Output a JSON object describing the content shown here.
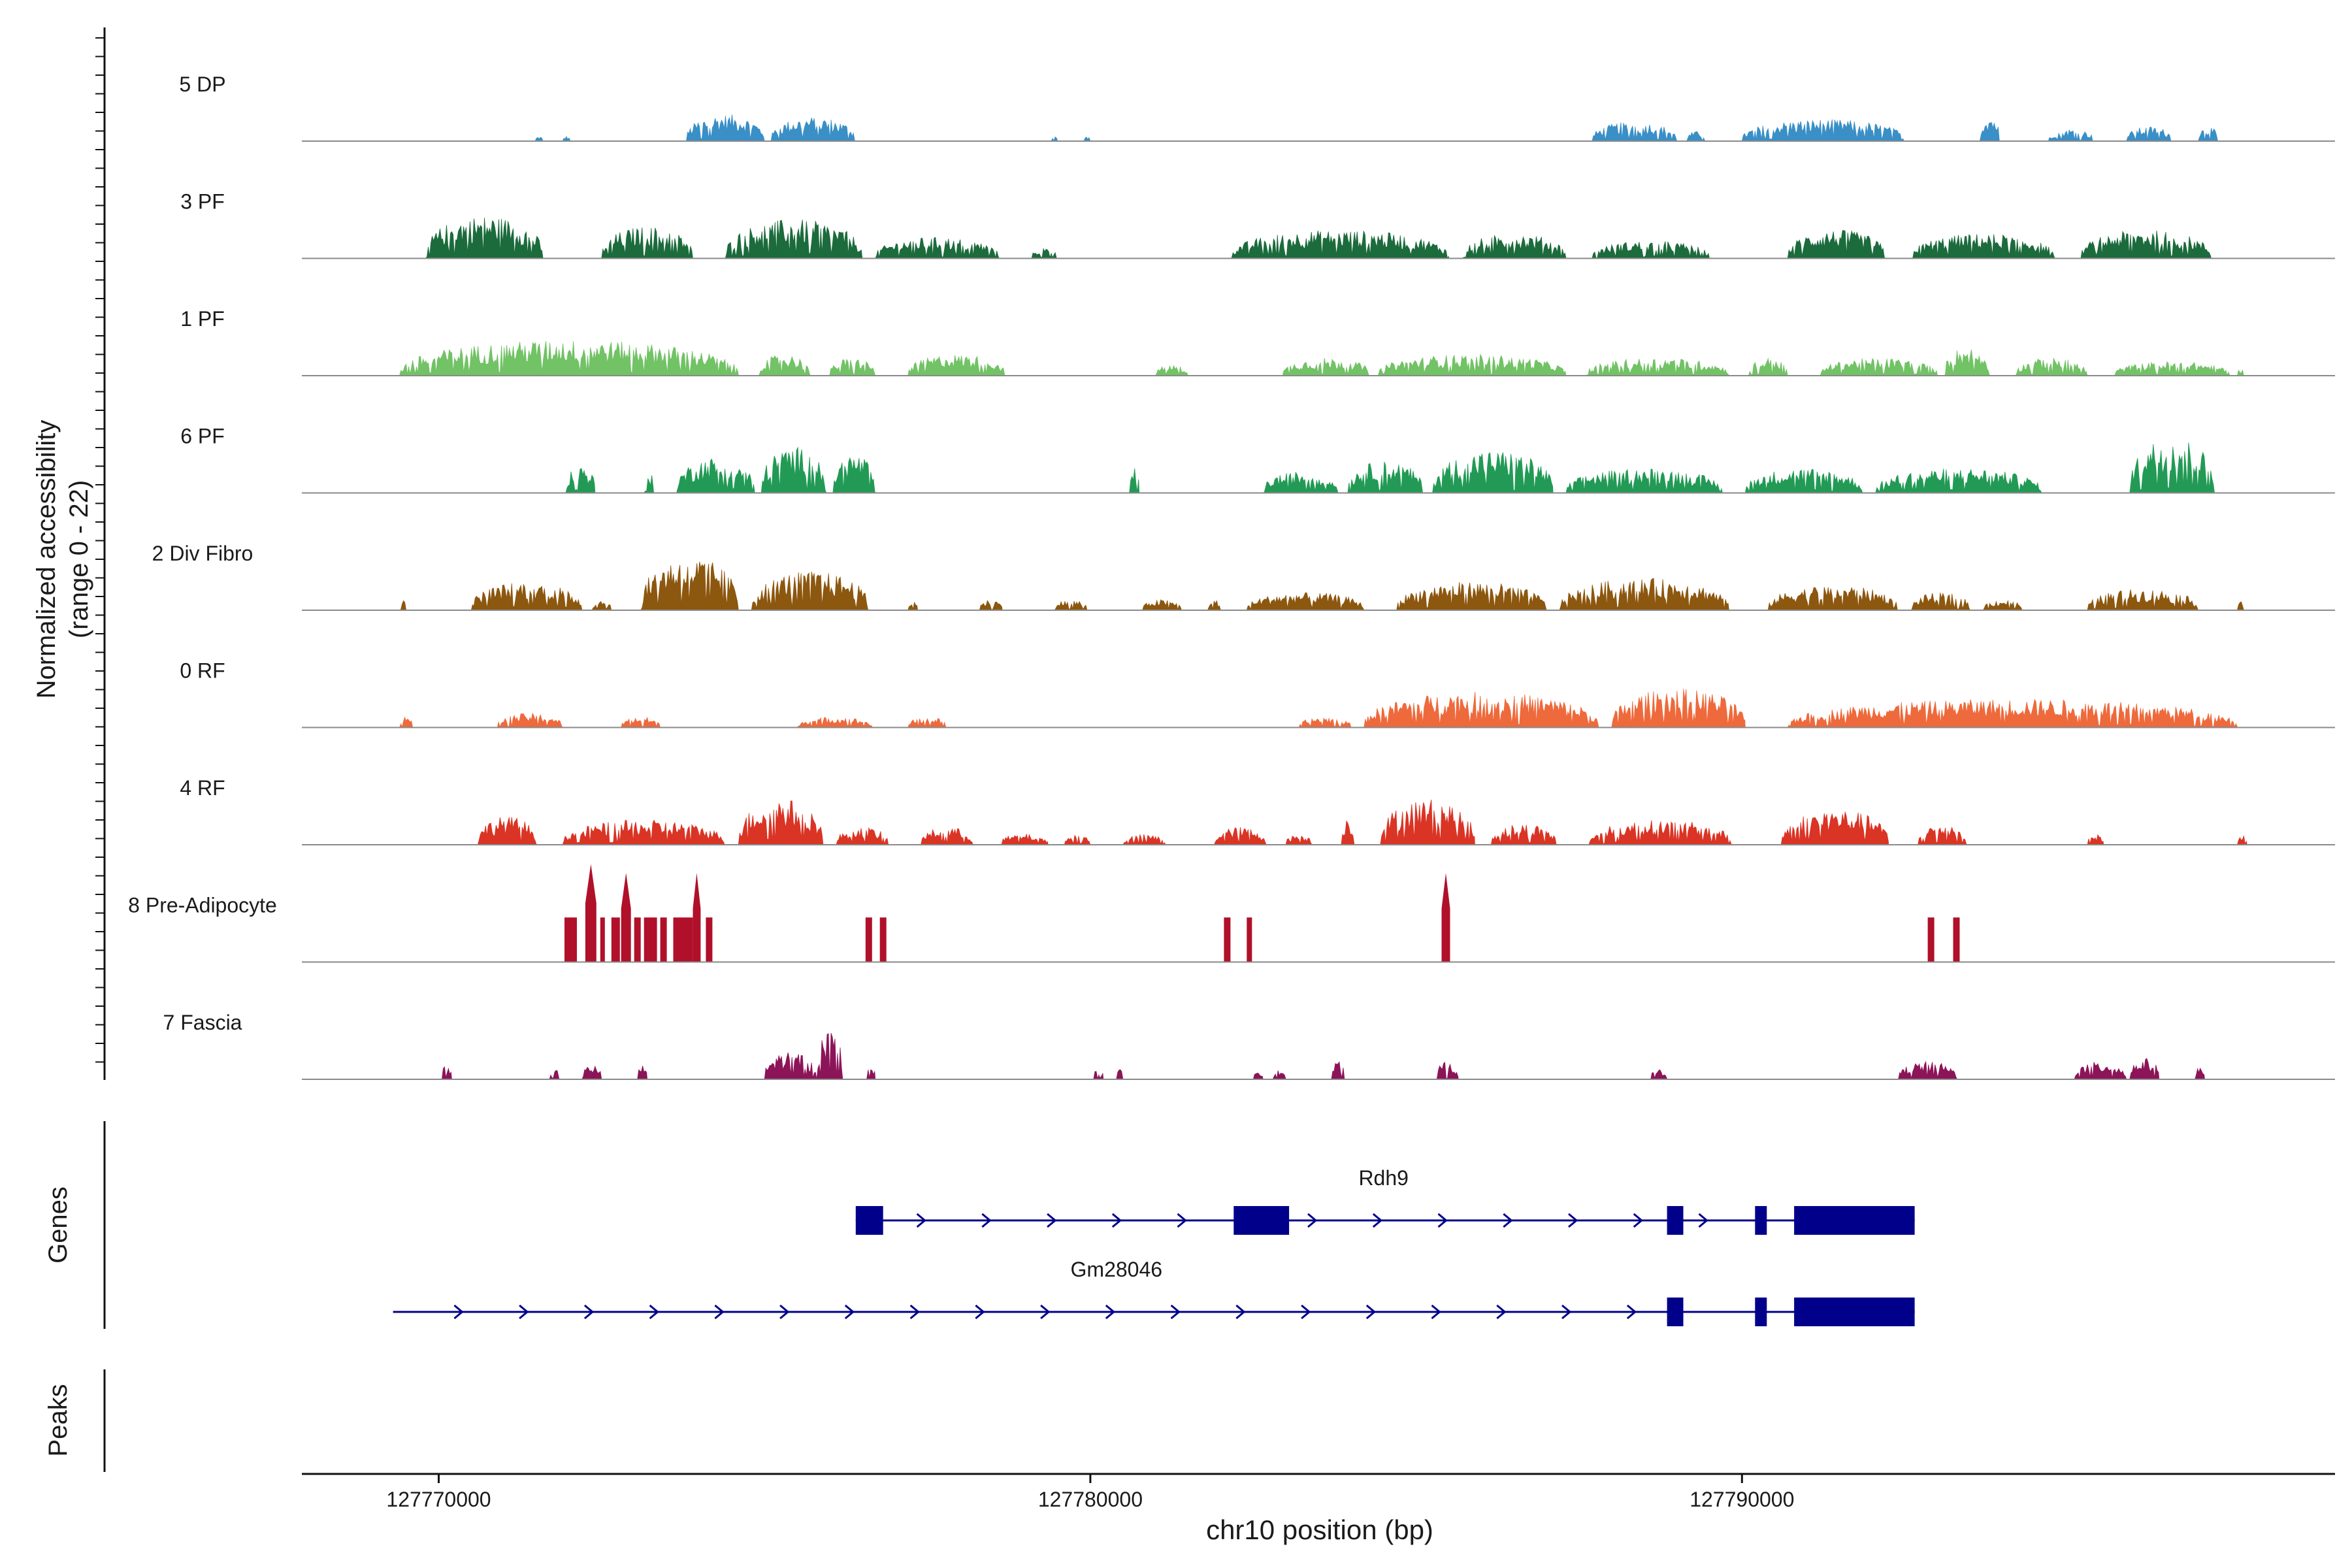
{
  "chart_data": {
    "type": "genome-coverage",
    "xlabel": "chr10 position (bp)",
    "ylabel_line1": "Normalized accessibility",
    "ylabel_line2": "(range 0 - 22)",
    "y_range": [
      0,
      22
    ],
    "xlim": [
      127767900,
      127799100
    ],
    "x_ticks": [
      127770000,
      127780000,
      127790000
    ],
    "tick_labels": [
      "127770000",
      "127780000",
      "127790000"
    ],
    "panel_labels": {
      "genes": "Genes",
      "peaks": "Peaks"
    },
    "tracks": [
      {
        "name": "5 DP",
        "color": "#3a8fc7",
        "mode": "area",
        "scale": 0.55,
        "regions": [
          [
            127771480,
            127771600,
            2
          ],
          [
            127771900,
            127772020,
            2
          ],
          [
            127773800,
            127775000,
            11
          ],
          [
            127775100,
            127776400,
            10
          ],
          [
            127779400,
            127779500,
            2
          ],
          [
            127779900,
            127780000,
            2
          ],
          [
            127787700,
            127789000,
            8
          ],
          [
            127789150,
            127789450,
            4
          ],
          [
            127790000,
            127792500,
            9
          ],
          [
            127793650,
            127793950,
            11
          ],
          [
            127794700,
            127795400,
            5
          ],
          [
            127795900,
            127796600,
            6
          ],
          [
            127797000,
            127797300,
            6
          ]
        ]
      },
      {
        "name": "3 PF",
        "color": "#1c6b3c",
        "mode": "area",
        "scale": 0.8,
        "regions": [
          [
            127769800,
            127771600,
            12
          ],
          [
            127772500,
            127773900,
            9
          ],
          [
            127774400,
            127776500,
            11
          ],
          [
            127776700,
            127778600,
            6
          ],
          [
            127779100,
            127779500,
            3
          ],
          [
            127782150,
            127785500,
            8
          ],
          [
            127785700,
            127787300,
            7
          ],
          [
            127787700,
            127789500,
            5
          ],
          [
            127790700,
            127792200,
            8
          ],
          [
            127792600,
            127794800,
            7
          ],
          [
            127795200,
            127797200,
            8
          ]
        ]
      },
      {
        "name": "1 PF",
        "color": "#72c266",
        "mode": "area",
        "scale": 0.8,
        "regions": [
          [
            127769400,
            127774600,
            10
          ],
          [
            127774900,
            127775700,
            6
          ],
          [
            127776000,
            127776700,
            5
          ],
          [
            127777200,
            127778700,
            6
          ],
          [
            127781000,
            127781500,
            3
          ],
          [
            127782950,
            127784300,
            5
          ],
          [
            127784400,
            127787300,
            6
          ],
          [
            127787600,
            127789800,
            5
          ],
          [
            127790100,
            127790700,
            5
          ],
          [
            127791200,
            127793000,
            5
          ],
          [
            127793100,
            127793800,
            8
          ],
          [
            127794200,
            127795300,
            5
          ],
          [
            127795700,
            127797500,
            4
          ],
          [
            127797600,
            127797700,
            2
          ]
        ]
      },
      {
        "name": "6 PF",
        "color": "#229a55",
        "mode": "area",
        "scale": 0.8,
        "regions": [
          [
            127771950,
            127772400,
            8
          ],
          [
            127773150,
            127773300,
            6
          ],
          [
            127773650,
            127774850,
            10
          ],
          [
            127774950,
            127775950,
            13
          ],
          [
            127776050,
            127776700,
            11
          ],
          [
            127780600,
            127780750,
            7
          ],
          [
            127782650,
            127783800,
            6
          ],
          [
            127783950,
            127785100,
            9
          ],
          [
            127785250,
            127787100,
            12
          ],
          [
            127787300,
            127789700,
            7
          ],
          [
            127790050,
            127791850,
            7
          ],
          [
            127792050,
            127794600,
            7
          ],
          [
            127795950,
            127797250,
            16
          ]
        ]
      },
      {
        "name": "2 Div Fibro",
        "color": "#8c570f",
        "mode": "area",
        "scale": 0.8,
        "regions": [
          [
            127769400,
            127769500,
            3
          ],
          [
            127770500,
            127772200,
            8
          ],
          [
            127772350,
            127772650,
            3
          ],
          [
            127773100,
            127774600,
            15
          ],
          [
            127774800,
            127776600,
            11
          ],
          [
            127777200,
            127777350,
            3
          ],
          [
            127778300,
            127778650,
            3
          ],
          [
            127779450,
            127779950,
            3
          ],
          [
            127780800,
            127781400,
            3
          ],
          [
            127781800,
            127782000,
            3
          ],
          [
            127782400,
            127784200,
            5
          ],
          [
            127784700,
            127787000,
            8
          ],
          [
            127787200,
            127789800,
            9
          ],
          [
            127790400,
            127792400,
            7
          ],
          [
            127792600,
            127793500,
            5
          ],
          [
            127793700,
            127794300,
            3
          ],
          [
            127795300,
            127797000,
            6
          ],
          [
            127797600,
            127797700,
            3
          ]
        ]
      },
      {
        "name": "0 RF",
        "color": "#ee6a3c",
        "mode": "area",
        "scale": 0.8,
        "regions": [
          [
            127769400,
            127769600,
            3
          ],
          [
            127770900,
            127771900,
            4
          ],
          [
            127772800,
            127773400,
            3
          ],
          [
            127775500,
            127776650,
            3
          ],
          [
            127777200,
            127777800,
            3
          ],
          [
            127783200,
            127784000,
            3
          ],
          [
            127784200,
            127787800,
            10
          ],
          [
            127788000,
            127790050,
            11
          ],
          [
            127790700,
            127797600,
            8
          ]
        ]
      },
      {
        "name": "4 RF",
        "color": "#da3425",
        "mode": "area",
        "scale": 0.8,
        "regions": [
          [
            127770600,
            127771500,
            8
          ],
          [
            127771900,
            127774400,
            7
          ],
          [
            127774600,
            127775900,
            13
          ],
          [
            127776100,
            127776900,
            5
          ],
          [
            127777400,
            127778200,
            5
          ],
          [
            127778600,
            127779350,
            3
          ],
          [
            127779600,
            127780000,
            3
          ],
          [
            127780500,
            127781150,
            3
          ],
          [
            127781900,
            127782700,
            5
          ],
          [
            127783000,
            127783400,
            3
          ],
          [
            127783850,
            127784050,
            8
          ],
          [
            127784450,
            127785900,
            13
          ],
          [
            127786150,
            127787150,
            6
          ],
          [
            127787650,
            127789850,
            7
          ],
          [
            127790600,
            127792250,
            10
          ],
          [
            127792700,
            127793450,
            6
          ],
          [
            127795300,
            127795550,
            3
          ],
          [
            127797600,
            127797750,
            3
          ]
        ]
      },
      {
        "name": "8 Pre-Adipocyte",
        "color": "#b0102a",
        "mode": "block",
        "blocks": [
          [
            127771930,
            127772120,
            10
          ],
          [
            127772250,
            127772420,
            22
          ],
          [
            127772480,
            127772550,
            10
          ],
          [
            127772650,
            127772780,
            10
          ],
          [
            127772800,
            127772950,
            20
          ],
          [
            127773000,
            127773100,
            10
          ],
          [
            127773150,
            127773350,
            10
          ],
          [
            127773400,
            127773500,
            10
          ],
          [
            127773600,
            127773900,
            10
          ],
          [
            127773900,
            127774020,
            20
          ],
          [
            127774100,
            127774200,
            10
          ],
          [
            127776550,
            127776650,
            10
          ],
          [
            127776770,
            127776870,
            10
          ],
          [
            127782050,
            127782150,
            10
          ],
          [
            127782400,
            127782480,
            10
          ],
          [
            127785390,
            127785520,
            20
          ],
          [
            127792850,
            127792950,
            10
          ],
          [
            127793240,
            127793340,
            10
          ]
        ]
      },
      {
        "name": "7 Fascia",
        "color": "#8c1458",
        "mode": "area",
        "scale": 0.8,
        "regions": [
          [
            127770050,
            127770200,
            5
          ],
          [
            127771700,
            127771850,
            3
          ],
          [
            127772200,
            127772500,
            4
          ],
          [
            127773050,
            127773200,
            4
          ],
          [
            127775000,
            127775800,
            8
          ],
          [
            127775800,
            127776200,
            14
          ],
          [
            127776550,
            127776700,
            4
          ],
          [
            127780050,
            127780200,
            3
          ],
          [
            127780400,
            127780500,
            3
          ],
          [
            127782500,
            127782650,
            3
          ],
          [
            127782800,
            127783000,
            3
          ],
          [
            127783700,
            127783900,
            5
          ],
          [
            127785300,
            127785650,
            5
          ],
          [
            127788600,
            127788850,
            3
          ],
          [
            127792400,
            127793300,
            5
          ],
          [
            127795100,
            127795900,
            5
          ],
          [
            127795950,
            127796400,
            6
          ],
          [
            127796950,
            127797100,
            4
          ]
        ]
      }
    ],
    "genes": [
      {
        "name": "Rdh9",
        "start": 127776400,
        "end": 127792650,
        "exons": [
          [
            127776400,
            127776820
          ],
          [
            127782200,
            127783050
          ],
          [
            127788850,
            127789100
          ],
          [
            127790200,
            127790380
          ],
          [
            127790800,
            127792650
          ]
        ]
      },
      {
        "name": "Gm28046",
        "start": 127769300,
        "end": 127792650,
        "exons": [
          [
            127788850,
            127789100
          ],
          [
            127790200,
            127790380
          ],
          [
            127790800,
            127792650
          ]
        ]
      }
    ],
    "colors": {
      "gene": "#00008b",
      "baseline": "#8a8a8a",
      "axis": "#111111"
    }
  }
}
